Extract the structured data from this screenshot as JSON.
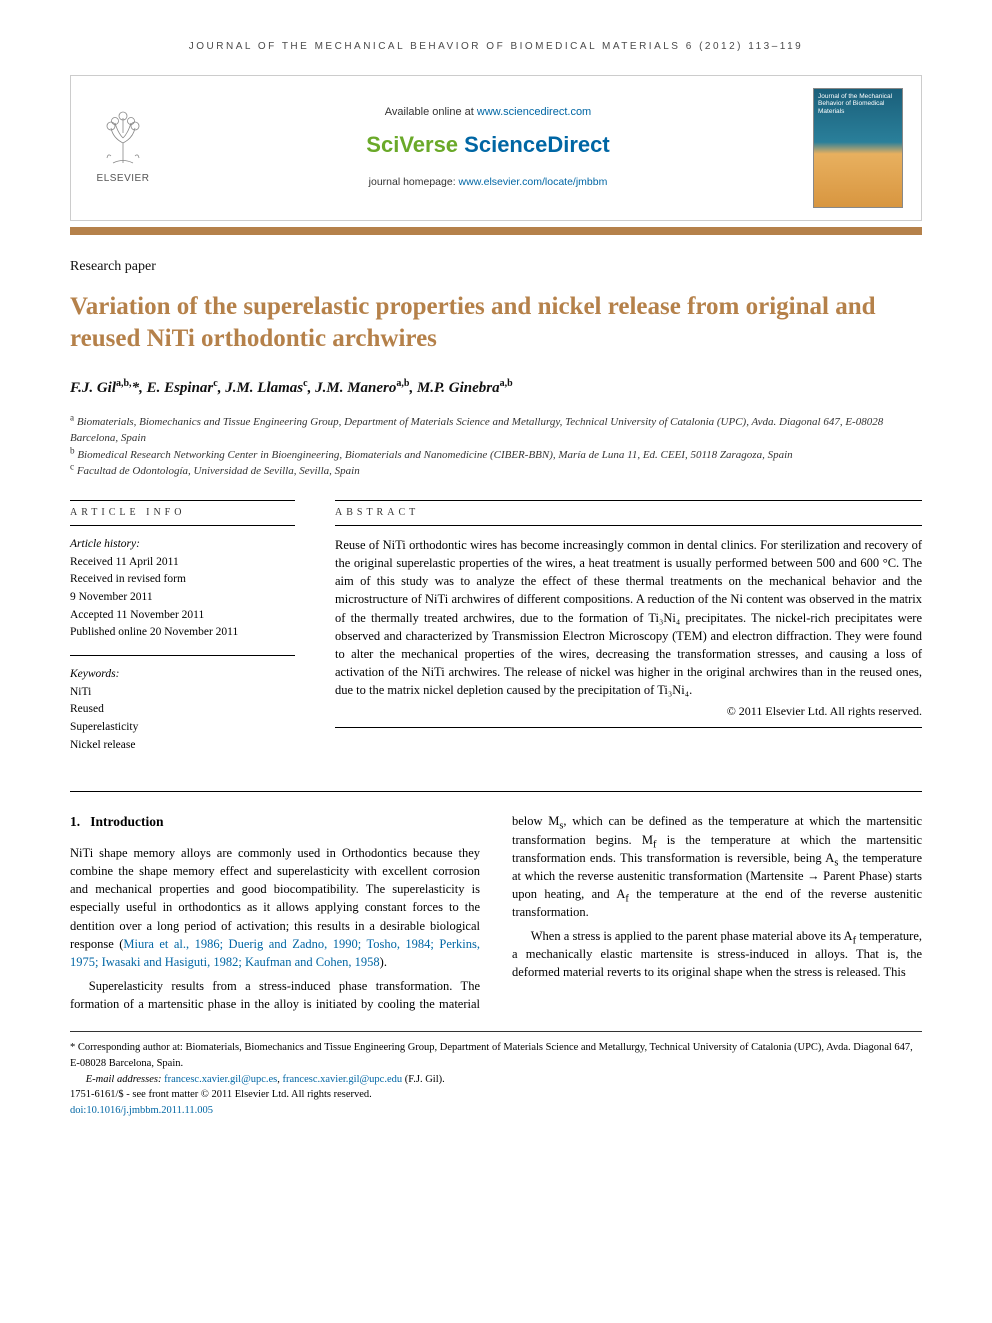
{
  "journal_header": "JOURNAL OF THE MECHANICAL BEHAVIOR OF BIOMEDICAL MATERIALS 6 (2012) 113–119",
  "top_box": {
    "elsevier": "ELSEVIER",
    "available_text": "Available online at ",
    "available_url": "www.sciencedirect.com",
    "sciverse_sci": "SciVerse ",
    "sciverse_direct": "ScienceDirect",
    "homepage_text": "journal homepage: ",
    "homepage_url": "www.elsevier.com/locate/jmbbm",
    "cover_title": "Journal of the Mechanical Behavior of Biomedical Materials"
  },
  "colors": {
    "accent": "#b5814a",
    "link": "#0066a4",
    "sciverse_green": "#6aa929"
  },
  "article_type": "Research paper",
  "title": "Variation of the superelastic properties and nickel release from original and reused NiTi orthodontic archwires",
  "authors_html": "F.J. Gil<sup>a,b,</sup>*, E. Espinar<sup>c</sup>, J.M. Llamas<sup>c</sup>, J.M. Manero<sup>a,b</sup>, M.P. Ginebra<sup>a,b</sup>",
  "affiliations": {
    "a": "Biomaterials, Biomechanics and Tissue Engineering Group, Department of Materials Science and Metallurgy, Technical University of Catalonia (UPC), Avda. Diagonal 647, E-08028 Barcelona, Spain",
    "b": "Biomedical Research Networking Center in Bioengineering, Biomaterials and Nanomedicine (CIBER-BBN), María de Luna 11, Ed. CEEI, 50118 Zaragoza, Spain",
    "c": "Facultad de Odontología, Universidad de Sevilla, Sevilla, Spain"
  },
  "article_info": {
    "heading": "ARTICLE INFO",
    "history_label": "Article history:",
    "history": [
      "Received 11 April 2011",
      "Received in revised form",
      "9 November 2011",
      "Accepted 11 November 2011",
      "Published online 20 November 2011"
    ],
    "keywords_label": "Keywords:",
    "keywords": [
      "NiTi",
      "Reused",
      "Superelasticity",
      "Nickel release"
    ]
  },
  "abstract": {
    "heading": "ABSTRACT",
    "text": "Reuse of NiTi orthodontic wires has become increasingly common in dental clinics. For sterilization and recovery of the original superelastic properties of the wires, a heat treatment is usually performed between 500 and 600 °C. The aim of this study was to analyze the effect of these thermal treatments on the mechanical behavior and the microstructure of NiTi archwires of different compositions. A reduction of the Ni content was observed in the matrix of the thermally treated archwires, due to the formation of Ti₃Ni₄ precipitates. The nickel-rich precipitates were observed and characterized by Transmission Electron Microscopy (TEM) and electron diffraction. They were found to alter the mechanical properties of the wires, decreasing the transformation stresses, and causing a loss of activation of the NiTi archwires. The release of nickel was higher in the original archwires than in the reused ones, due to the matrix nickel depletion caused by the precipitation of Ti₃Ni₄.",
    "copyright": "© 2011 Elsevier Ltd. All rights reserved."
  },
  "body": {
    "section_no": "1.",
    "section_title": "Introduction",
    "p1": "NiTi shape memory alloys are commonly used in Orthodontics because they combine the shape memory effect and superelasticity with excellent corrosion and mechanical properties and good biocompatibility. The superelasticity is especially useful in orthodontics as it allows applying constant forces to the dentition over a long period of activation; this results in a desirable biological response (",
    "p1_cite": "Miura et al., 1986; Duerig and Zadno, 1990; Tosho, 1984; Perkins, 1975; Iwasaki and Hasiguti, 1982; Kaufman and Cohen, 1958",
    "p1_tail": ").",
    "p2": "Superelasticity results from a stress-induced phase transformation. The formation of a martensitic phase in the ",
    "p3a": "alloy is initiated by cooling the material below M",
    "p3b": ", which can be defined as the temperature at which the martensitic transformation begins. M",
    "p3c": " is the temperature at which the martensitic transformation ends. This transformation is reversible, being A",
    "p3d": " the temperature at which the reverse austenitic transformation (Martensite → Parent Phase) starts upon heating, and A",
    "p3e": " the temperature at the end of the reverse austenitic transformation.",
    "p4a": "When a stress is applied to the parent phase material above its A",
    "p4b": " temperature, a mechanically elastic martensite is stress-induced in alloys. That is, the deformed material reverts to its original shape when the stress is released. This"
  },
  "footer": {
    "corr_label": "* Corresponding author at:",
    "corr_text": " Biomaterials, Biomechanics and Tissue Engineering Group, Department of Materials Science and Metallurgy, Technical University of Catalonia (UPC), Avda. Diagonal 647, E-08028 Barcelona, Spain.",
    "email_label": "E-mail addresses:",
    "email1": "francesc.xavier.gil@upc.es",
    "email2": "francesc.xavier.gil@upc.edu",
    "email_tail": " (F.J. Gil).",
    "issn_line": "1751-6161/$ - see front matter © 2011 Elsevier Ltd. All rights reserved.",
    "doi_label": "doi:",
    "doi": "10.1016/j.jmbbm.2011.11.005"
  }
}
